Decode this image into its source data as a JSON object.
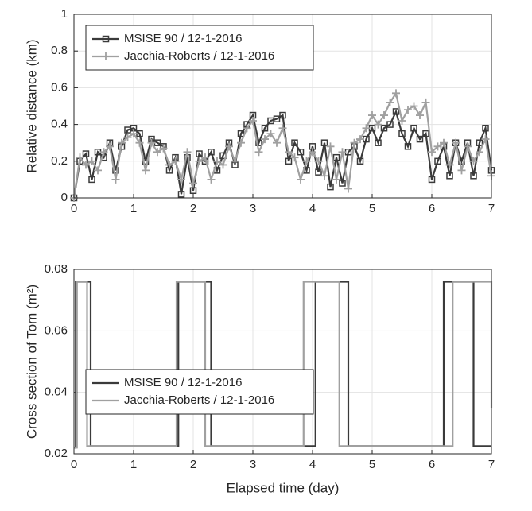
{
  "chart_data": [
    {
      "type": "line",
      "ylabel": "Relative distance (km)",
      "x": [
        0,
        0.1,
        0.2,
        0.3,
        0.4,
        0.5,
        0.6,
        0.7,
        0.8,
        0.9,
        1,
        1.1,
        1.2,
        1.3,
        1.4,
        1.5,
        1.6,
        1.7,
        1.8,
        1.9,
        2,
        2.1,
        2.2,
        2.3,
        2.4,
        2.5,
        2.6,
        2.7,
        2.8,
        2.9,
        3,
        3.1,
        3.2,
        3.3,
        3.4,
        3.5,
        3.6,
        3.7,
        3.8,
        3.9,
        4,
        4.1,
        4.2,
        4.3,
        4.4,
        4.5,
        4.6,
        4.7,
        4.8,
        4.9,
        5,
        5.1,
        5.2,
        5.3,
        5.4,
        5.5,
        5.6,
        5.7,
        5.8,
        5.9,
        6,
        6.1,
        6.2,
        6.3,
        6.4,
        6.5,
        6.6,
        6.7,
        6.8,
        6.9,
        7
      ],
      "series": [
        {
          "name": "MSISE 90 / 12-1-2016",
          "color": "#3a3a3a",
          "marker": "square",
          "values": [
            0,
            0.2,
            0.24,
            0.1,
            0.25,
            0.22,
            0.3,
            0.15,
            0.28,
            0.37,
            0.38,
            0.35,
            0.2,
            0.32,
            0.3,
            0.28,
            0.15,
            0.22,
            0.02,
            0.22,
            0.04,
            0.24,
            0.2,
            0.25,
            0.15,
            0.23,
            0.3,
            0.18,
            0.35,
            0.4,
            0.45,
            0.3,
            0.38,
            0.42,
            0.43,
            0.45,
            0.2,
            0.3,
            0.25,
            0.15,
            0.28,
            0.14,
            0.3,
            0.06,
            0.22,
            0.08,
            0.25,
            0.28,
            0.2,
            0.32,
            0.38,
            0.3,
            0.38,
            0.4,
            0.47,
            0.35,
            0.28,
            0.38,
            0.32,
            0.35,
            0.1,
            0.2,
            0.28,
            0.12,
            0.3,
            0.2,
            0.3,
            0.12,
            0.3,
            0.38,
            0.15
          ]
        },
        {
          "name": "Jacchia-Roberts / 12-1-2016",
          "color": "#a0a0a0",
          "marker": "plus",
          "values": [
            0,
            0.22,
            0.18,
            0.2,
            0.15,
            0.25,
            0.28,
            0.1,
            0.3,
            0.33,
            0.35,
            0.3,
            0.15,
            0.3,
            0.25,
            0.27,
            0.18,
            0.2,
            0.1,
            0.25,
            0.08,
            0.2,
            0.22,
            0.1,
            0.2,
            0.18,
            0.28,
            0.2,
            0.3,
            0.38,
            0.42,
            0.25,
            0.32,
            0.35,
            0.3,
            0.38,
            0.25,
            0.22,
            0.1,
            0.2,
            0.25,
            0.2,
            0.12,
            0.28,
            0.1,
            0.25,
            0.05,
            0.3,
            0.32,
            0.38,
            0.45,
            0.4,
            0.45,
            0.52,
            0.57,
            0.42,
            0.48,
            0.5,
            0.45,
            0.52,
            0.25,
            0.28,
            0.3,
            0.18,
            0.3,
            0.15,
            0.28,
            0.2,
            0.25,
            0.32,
            0.12
          ]
        }
      ],
      "xlim": [
        0,
        7
      ],
      "xticks": [
        0,
        1,
        2,
        3,
        4,
        5,
        6,
        7
      ],
      "ylim": [
        0,
        1
      ],
      "yticks": [
        0,
        0.2,
        0.4,
        0.6,
        0.8,
        1
      ],
      "grid": true,
      "legend": "upper left"
    },
    {
      "type": "line",
      "ylabel": "Cross section of Tom (m²)",
      "xlabel": "Elapsed time (day)",
      "series": [
        {
          "name": "MSISE 90 / 12-1-2016",
          "color": "#3a3a3a",
          "x": [
            0,
            0.03,
            0.03,
            0.28,
            0.28,
            1.75,
            1.75,
            2.3,
            2.3,
            4.05,
            4.05,
            4.6,
            4.6,
            6.2,
            6.2,
            6.7,
            6.7,
            7
          ],
          "values": [
            0.022,
            0.022,
            0.076,
            0.076,
            0.0225,
            0.0225,
            0.076,
            0.076,
            0.0225,
            0.0225,
            0.076,
            0.076,
            0.0225,
            0.0225,
            0.076,
            0.076,
            0.0225,
            0.0225
          ]
        },
        {
          "name": "Jacchia-Roberts / 12-1-2016",
          "color": "#a0a0a0",
          "x": [
            0,
            0.05,
            0.05,
            0.22,
            0.22,
            1.72,
            1.72,
            2.2,
            2.2,
            3.85,
            3.85,
            4.45,
            4.45,
            6.35,
            6.35,
            7.0,
            7.0
          ],
          "values": [
            0.022,
            0.022,
            0.076,
            0.076,
            0.0225,
            0.0225,
            0.076,
            0.076,
            0.0225,
            0.0225,
            0.076,
            0.076,
            0.0225,
            0.0225,
            0.076,
            0.076,
            0.035
          ]
        }
      ],
      "xlim": [
        0,
        7
      ],
      "xticks": [
        0,
        1,
        2,
        3,
        4,
        5,
        6,
        7
      ],
      "ylim": [
        0.02,
        0.08
      ],
      "yticks": [
        0.02,
        0.04,
        0.06,
        0.08
      ],
      "grid": true,
      "legend": "center left"
    }
  ]
}
